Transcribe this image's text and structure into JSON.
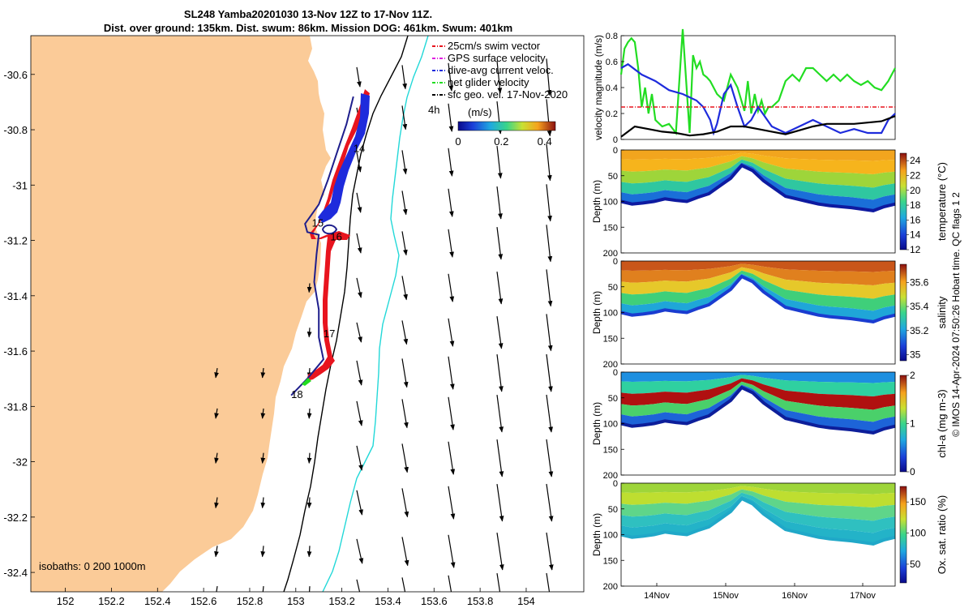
{
  "title_line1": "SL248 Yamba20201030 13-Nov 12Z to 17-Nov 11Z.",
  "title_line2": "Dist. over ground: 135km. Dist. swum: 86km. Mission DOG: 461km. Swum: 401km",
  "copyright": "© IMOS 14-Apr-2024 07:50:26 Hobart time. QC flags 1 2",
  "colors": {
    "land": "#fbcb98",
    "isobath200": "#000000",
    "isobath1000": "#22d8d8",
    "swim_vector": "#e8141e",
    "gps_surface": "#e020e0",
    "dive_avg": "#1e2bdc",
    "net_glider": "#22dd22",
    "sfc_geo": "#000000"
  },
  "chart_data": [
    {
      "type": "map",
      "xlim": [
        151.85,
        154.25
      ],
      "ylim": [
        -32.47,
        -30.46
      ],
      "xticks": [
        "152",
        "152.2",
        "152.4",
        "152.6",
        "152.8",
        "153",
        "153.2",
        "153.4",
        "153.6",
        "153.8",
        "154"
      ],
      "yticks": [
        "-30.6",
        "-30.8",
        "-31",
        "-31.2",
        "-31.4",
        "-31.6",
        "-31.8",
        "-32",
        "-32.2",
        "-32.4"
      ],
      "legend": [
        {
          "label": "25cm/s swim vector",
          "color": "#e8141e",
          "style": "dashdot"
        },
        {
          "label": "GPS surface velocity",
          "color": "#e020e0",
          "style": "dashdot"
        },
        {
          "label": "dive-avg current veloc.",
          "color": "#1e2bdc",
          "style": "dashdot"
        },
        {
          "label": "net glider velocity",
          "color": "#22dd22",
          "style": "dashdot"
        },
        {
          "label": "sfc geo. vel. 17-Nov-2020",
          "color": "#000000",
          "style": "dashdot"
        }
      ],
      "legend_placement": "top-right",
      "scale_label": "4h",
      "colorbar": {
        "title": "(m/s)",
        "ticks": [
          "0",
          "0.2",
          "0.4"
        ],
        "range": [
          0,
          0.45
        ]
      },
      "isobaths_label": "isobaths: 0   200  1000m",
      "day_labels": [
        {
          "label": "14",
          "lon": 153.25,
          "lat": -30.88
        },
        {
          "label": "15",
          "lon": 153.07,
          "lat": -31.15
        },
        {
          "label": "16",
          "lon": 153.15,
          "lat": -31.2
        },
        {
          "label": "17",
          "lon": 153.12,
          "lat": -31.55
        },
        {
          "label": "18",
          "lon": 152.98,
          "lat": -31.77
        }
      ],
      "track": [
        [
          153.25,
          -30.68
        ],
        [
          153.22,
          -30.78
        ],
        [
          153.18,
          -30.88
        ],
        [
          153.14,
          -30.98
        ],
        [
          153.1,
          -31.07
        ],
        [
          153.04,
          -31.14
        ],
        [
          153.05,
          -31.17
        ],
        [
          153.1,
          -31.18
        ],
        [
          153.09,
          -31.25
        ],
        [
          153.08,
          -31.35
        ],
        [
          153.1,
          -31.45
        ],
        [
          153.1,
          -31.55
        ],
        [
          153.12,
          -31.63
        ],
        [
          153.05,
          -31.7
        ],
        [
          152.98,
          -31.76
        ]
      ]
    },
    {
      "type": "line",
      "ylabel": "velocity magnitude (m/s)",
      "ylim": [
        0,
        0.8
      ],
      "yticks": [
        "0",
        "0.2",
        "0.4",
        "0.6",
        "0.8"
      ],
      "xlim": [
        0,
        4
      ],
      "series": [
        {
          "color": "#22dd22",
          "x": [
            0,
            0.05,
            0.1,
            0.15,
            0.2,
            0.25,
            0.3,
            0.35,
            0.4,
            0.45,
            0.5,
            0.6,
            0.7,
            0.8,
            0.9,
            1.0,
            1.05,
            1.1,
            1.15,
            1.2,
            1.25,
            1.3,
            1.4,
            1.5,
            1.6,
            1.7,
            1.8,
            1.85,
            1.9,
            1.95,
            2.0,
            2.05,
            2.1,
            2.15,
            2.2,
            2.3,
            2.4,
            2.5,
            2.6,
            2.7,
            2.8,
            2.9,
            3.0,
            3.1,
            3.2,
            3.3,
            3.4,
            3.5,
            3.6,
            3.7,
            3.8,
            3.9,
            4.0
          ],
          "values": [
            0.5,
            0.7,
            0.75,
            0.78,
            0.75,
            0.55,
            0.25,
            0.4,
            0.2,
            0.35,
            0.15,
            0.1,
            0.12,
            0.05,
            0.85,
            0.05,
            0.65,
            0.55,
            0.6,
            0.5,
            0.48,
            0.45,
            0.35,
            0.3,
            0.5,
            0.4,
            0.22,
            0.45,
            0.2,
            0.35,
            0.22,
            0.3,
            0.2,
            0.25,
            0.25,
            0.3,
            0.45,
            0.5,
            0.45,
            0.55,
            0.55,
            0.5,
            0.45,
            0.5,
            0.45,
            0.5,
            0.45,
            0.42,
            0.45,
            0.4,
            0.38,
            0.45,
            0.55
          ]
        },
        {
          "color": "#1e2bdc",
          "x": [
            0,
            0.1,
            0.3,
            0.5,
            0.7,
            0.9,
            1.1,
            1.2,
            1.3,
            1.35,
            1.4,
            1.5,
            1.6,
            1.7,
            1.8,
            1.9,
            2.0,
            2.2,
            2.4,
            2.6,
            2.8,
            3.0,
            3.2,
            3.4,
            3.6,
            3.8,
            3.9,
            4.0
          ],
          "values": [
            0.55,
            0.58,
            0.5,
            0.45,
            0.38,
            0.35,
            0.3,
            0.25,
            0.15,
            0.05,
            0.12,
            0.35,
            0.42,
            0.25,
            0.1,
            0.15,
            0.25,
            0.1,
            0.05,
            0.1,
            0.15,
            0.1,
            0.05,
            0.08,
            0.05,
            0.05,
            0.15,
            0.2
          ]
        },
        {
          "color": "#000000",
          "x": [
            0,
            0.2,
            0.4,
            0.6,
            0.8,
            1.0,
            1.2,
            1.4,
            1.6,
            1.8,
            2.0,
            2.2,
            2.4,
            2.6,
            2.8,
            3.0,
            3.2,
            3.4,
            3.6,
            3.8,
            4.0
          ],
          "values": [
            0.02,
            0.1,
            0.08,
            0.06,
            0.05,
            0.03,
            0.04,
            0.06,
            0.1,
            0.1,
            0.08,
            0.06,
            0.04,
            0.07,
            0.1,
            0.12,
            0.12,
            0.12,
            0.13,
            0.14,
            0.18
          ]
        },
        {
          "color": "#e8141e",
          "style": "dashdot",
          "x": [
            0,
            4
          ],
          "values": [
            0.25,
            0.25
          ]
        }
      ]
    },
    {
      "type": "heatmap",
      "ylabel": "Depth (m)",
      "cblabel": "temperature (°C)",
      "yticks": [
        "0",
        "50",
        "100",
        "150",
        "200"
      ],
      "ylim": [
        200,
        0
      ],
      "cbticks": [
        "12",
        "14",
        "16",
        "18",
        "20",
        "22",
        "24"
      ],
      "cbrange": [
        12,
        25
      ]
    },
    {
      "type": "heatmap",
      "ylabel": "Depth (m)",
      "cblabel": "salinity",
      "yticks": [
        "0",
        "50",
        "100",
        "150",
        "200"
      ],
      "ylim": [
        200,
        0
      ],
      "cbticks": [
        "35",
        "35.2",
        "35.4",
        "35.6"
      ],
      "cbrange": [
        34.95,
        35.75
      ]
    },
    {
      "type": "heatmap",
      "ylabel": "Depth (m)",
      "cblabel": "chl-a (mg m-3)",
      "yticks": [
        "0",
        "50",
        "100",
        "150",
        "200"
      ],
      "ylim": [
        200,
        0
      ],
      "cbticks": [
        "0",
        "1",
        "2"
      ],
      "cbrange": [
        0,
        2
      ]
    },
    {
      "type": "heatmap",
      "ylabel": "Depth (m)",
      "cblabel": "Ox. sat. ratio (%)",
      "yticks": [
        "0",
        "50",
        "100",
        "150",
        "200"
      ],
      "ylim": [
        200,
        0
      ],
      "cbticks": [
        "50",
        "100",
        "150"
      ],
      "cbrange": [
        20,
        175
      ],
      "xticks": [
        "14Nov",
        "15Nov",
        "16Nov",
        "17Nov"
      ]
    }
  ]
}
